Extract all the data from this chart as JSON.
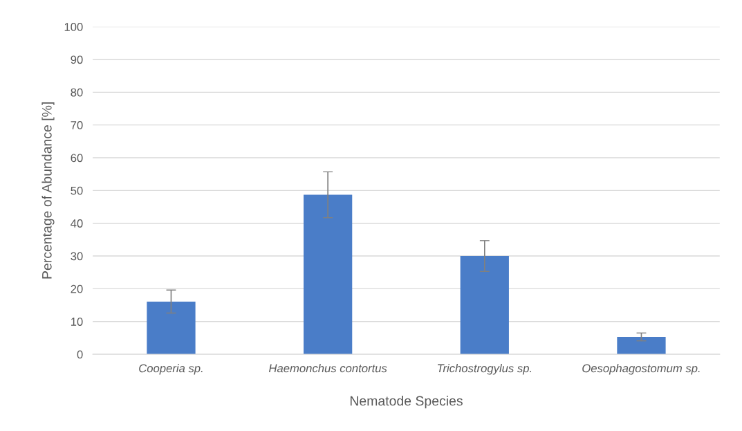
{
  "chart_data": {
    "type": "bar",
    "xlabel": "Nematode Species",
    "ylabel": "Percentage of Abundance [%]",
    "categories": [
      "Cooperia sp.",
      "Haemonchus contortus",
      "Trichostrogylus sp.",
      "Oesophagostomum sp."
    ],
    "values": [
      16.1,
      48.7,
      30.0,
      5.3
    ],
    "errors": [
      3.5,
      7.0,
      4.7,
      1.2
    ],
    "color": "#4a7dc8",
    "ylim": [
      0,
      100
    ],
    "yticks": [
      0,
      10,
      20,
      30,
      40,
      50,
      60,
      70,
      80,
      90,
      100
    ],
    "grid": "y"
  }
}
